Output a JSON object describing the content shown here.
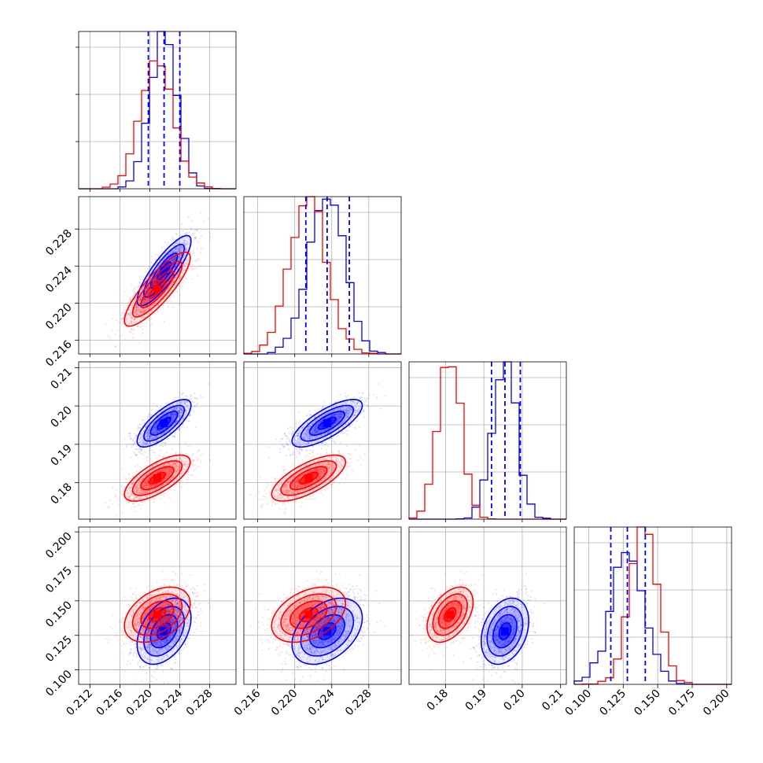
{
  "chart_data": {
    "type": "corner",
    "grid": true,
    "colors": {
      "series_a": "#0000ff",
      "series_b": "#ff0000",
      "axis": "#000000",
      "grid": "#b0b0b0"
    },
    "series": [
      {
        "color": "#0000ff",
        "params": [
          {
            "mean": 0.2219,
            "sd": 0.0018,
            "quantiles": [
              0.2198,
              0.2219,
              0.224
            ]
          },
          {
            "mean": 0.2235,
            "sd": 0.0019,
            "quantiles": [
              0.2212,
              0.2235,
              0.2259
            ]
          },
          {
            "mean": 0.1955,
            "sd": 0.0031,
            "quantiles": [
              0.192,
              0.1955,
              0.1995
            ]
          },
          {
            "mean": 0.128,
            "sd": 0.012,
            "quantiles": [
              0.116,
              0.128,
              0.141
            ]
          }
        ],
        "correlations": [
          [
            0,
            1,
            0.85
          ],
          [
            0,
            2,
            0.75
          ],
          [
            1,
            2,
            0.75
          ],
          [
            0,
            3,
            0.4
          ],
          [
            1,
            3,
            0.4
          ],
          [
            2,
            3,
            0.3
          ]
        ]
      },
      {
        "color": "#ff0000",
        "params": [
          {
            "mean": 0.221,
            "sd": 0.0022
          },
          {
            "mean": 0.2215,
            "sd": 0.002
          },
          {
            "mean": 0.1812,
            "sd": 0.003
          },
          {
            "mean": 0.14,
            "sd": 0.01
          }
        ],
        "correlations": [
          [
            0,
            1,
            0.85
          ],
          [
            0,
            2,
            0.7
          ],
          [
            1,
            2,
            0.7
          ],
          [
            0,
            3,
            0.4
          ],
          [
            1,
            3,
            0.4
          ],
          [
            2,
            3,
            0.45
          ]
        ]
      }
    ],
    "axes": [
      {
        "range": [
          0.2105,
          0.2315
        ],
        "ticks": [
          0.212,
          0.216,
          0.22,
          0.224,
          0.228
        ],
        "tick_labels": [
          "0.212",
          "0.216",
          "0.220",
          "0.224",
          "0.228"
        ]
      },
      {
        "range": [
          0.2145,
          0.2315
        ],
        "ticks": [
          0.216,
          0.22,
          0.224,
          0.228
        ],
        "tick_labels": [
          "0.216",
          "0.220",
          "0.224",
          "0.228"
        ]
      },
      {
        "range": [
          0.1705,
          0.2115
        ],
        "ticks": [
          0.18,
          0.19,
          0.2,
          0.21
        ],
        "tick_labels": [
          "0.18",
          "0.19",
          "0.20",
          "0.21"
        ]
      },
      {
        "range": [
          0.0895,
          0.2035
        ],
        "ticks": [
          0.1,
          0.125,
          0.15,
          0.175,
          0.2
        ],
        "tick_labels": [
          "0.100",
          "0.125",
          "0.150",
          "0.175",
          "0.200"
        ]
      }
    ]
  }
}
